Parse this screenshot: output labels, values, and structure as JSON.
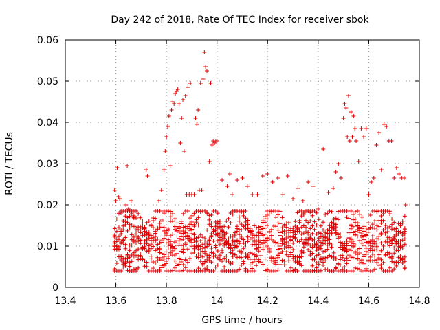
{
  "chart_data": {
    "type": "scatter",
    "title": "Day 242 of 2018, Rate Of TEC Index for receiver sbok",
    "xlabel": "GPS time / hours",
    "ylabel": "ROTI / TECUs",
    "xlim": [
      13.4,
      14.8
    ],
    "ylim": [
      0,
      0.06
    ],
    "x_ticks": [
      "13.4",
      "13.6",
      "13.8",
      "14",
      "14.2",
      "14.4",
      "14.6",
      "14.8"
    ],
    "y_ticks": [
      "0",
      "0.01",
      "0.02",
      "0.03",
      "0.04",
      "0.05",
      "0.06"
    ],
    "grid": true,
    "marker": "+",
    "series": [
      {
        "name": "ROTI",
        "color": "#e00000",
        "points": [
          [
            13.595,
            0.0235
          ],
          [
            13.6,
            0.021
          ],
          [
            13.605,
            0.029
          ],
          [
            13.61,
            0.022
          ],
          [
            13.615,
            0.0215
          ],
          [
            13.62,
            0.018
          ],
          [
            13.63,
            0.016
          ],
          [
            13.64,
            0.02
          ],
          [
            13.645,
            0.0295
          ],
          [
            13.65,
            0.019
          ],
          [
            13.66,
            0.021
          ],
          [
            13.67,
            0.017
          ],
          [
            13.72,
            0.0285
          ],
          [
            13.725,
            0.027
          ],
          [
            13.77,
            0.021
          ],
          [
            13.78,
            0.0235
          ],
          [
            13.79,
            0.0285
          ],
          [
            13.795,
            0.033
          ],
          [
            13.8,
            0.0365
          ],
          [
            13.805,
            0.039
          ],
          [
            13.81,
            0.0415
          ],
          [
            13.815,
            0.0295
          ],
          [
            13.82,
            0.043
          ],
          [
            13.825,
            0.045
          ],
          [
            13.83,
            0.0445
          ],
          [
            13.835,
            0.047
          ],
          [
            13.84,
            0.0475
          ],
          [
            13.845,
            0.048
          ],
          [
            13.85,
            0.0445
          ],
          [
            13.855,
            0.035
          ],
          [
            13.86,
            0.041
          ],
          [
            13.865,
            0.0455
          ],
          [
            13.87,
            0.033
          ],
          [
            13.875,
            0.0465
          ],
          [
            13.88,
            0.0225
          ],
          [
            13.885,
            0.0485
          ],
          [
            13.89,
            0.0225
          ],
          [
            13.895,
            0.0495
          ],
          [
            13.9,
            0.0225
          ],
          [
            13.91,
            0.0225
          ],
          [
            13.915,
            0.041
          ],
          [
            13.92,
            0.0395
          ],
          [
            13.925,
            0.043
          ],
          [
            13.93,
            0.0235
          ],
          [
            13.935,
            0.0495
          ],
          [
            13.94,
            0.0235
          ],
          [
            13.945,
            0.0505
          ],
          [
            13.95,
            0.057
          ],
          [
            13.955,
            0.0535
          ],
          [
            13.96,
            0.0525
          ],
          [
            13.97,
            0.0305
          ],
          [
            13.975,
            0.0495
          ],
          [
            13.98,
            0.0345
          ],
          [
            13.985,
            0.0355
          ],
          [
            13.99,
            0.035
          ],
          [
            13.995,
            0.0355
          ],
          [
            14.0,
            0.0355
          ],
          [
            14.02,
            0.026
          ],
          [
            14.04,
            0.0245
          ],
          [
            14.05,
            0.0275
          ],
          [
            14.06,
            0.0225
          ],
          [
            14.08,
            0.026
          ],
          [
            14.1,
            0.0265
          ],
          [
            14.12,
            0.0245
          ],
          [
            14.14,
            0.0225
          ],
          [
            14.16,
            0.0225
          ],
          [
            14.18,
            0.027
          ],
          [
            14.2,
            0.0275
          ],
          [
            14.22,
            0.0255
          ],
          [
            14.24,
            0.0265
          ],
          [
            14.26,
            0.0225
          ],
          [
            14.28,
            0.027
          ],
          [
            14.3,
            0.0215
          ],
          [
            14.32,
            0.024
          ],
          [
            14.34,
            0.021
          ],
          [
            14.36,
            0.0255
          ],
          [
            14.38,
            0.0245
          ],
          [
            14.4,
            0.019
          ],
          [
            14.42,
            0.0335
          ],
          [
            14.44,
            0.023
          ],
          [
            14.46,
            0.024
          ],
          [
            14.47,
            0.028
          ],
          [
            14.48,
            0.03
          ],
          [
            14.49,
            0.0265
          ],
          [
            14.5,
            0.041
          ],
          [
            14.505,
            0.0445
          ],
          [
            14.51,
            0.0435
          ],
          [
            14.515,
            0.0365
          ],
          [
            14.52,
            0.0465
          ],
          [
            14.525,
            0.0355
          ],
          [
            14.53,
            0.0425
          ],
          [
            14.535,
            0.0365
          ],
          [
            14.54,
            0.0415
          ],
          [
            14.545,
            0.0385
          ],
          [
            14.55,
            0.0355
          ],
          [
            14.56,
            0.0305
          ],
          [
            14.57,
            0.0385
          ],
          [
            14.58,
            0.0365
          ],
          [
            14.59,
            0.0385
          ],
          [
            14.6,
            0.0225
          ],
          [
            14.61,
            0.0255
          ],
          [
            14.62,
            0.0265
          ],
          [
            14.63,
            0.0345
          ],
          [
            14.64,
            0.0375
          ],
          [
            14.65,
            0.0285
          ],
          [
            14.66,
            0.0395
          ],
          [
            14.67,
            0.039
          ],
          [
            14.68,
            0.0355
          ],
          [
            14.69,
            0.0355
          ],
          [
            14.7,
            0.0265
          ],
          [
            14.71,
            0.029
          ],
          [
            14.72,
            0.0275
          ],
          [
            14.73,
            0.0265
          ],
          [
            14.74,
            0.0265
          ],
          [
            14.745,
            0.02
          ]
        ],
        "dense_band": {
          "x_range": [
            13.595,
            14.745
          ],
          "y_lower": 0.005,
          "y_upper": 0.017,
          "note": "thousands of points clustered between ~0.005 and ~0.017 TECUs throughout the interval"
        }
      }
    ]
  }
}
